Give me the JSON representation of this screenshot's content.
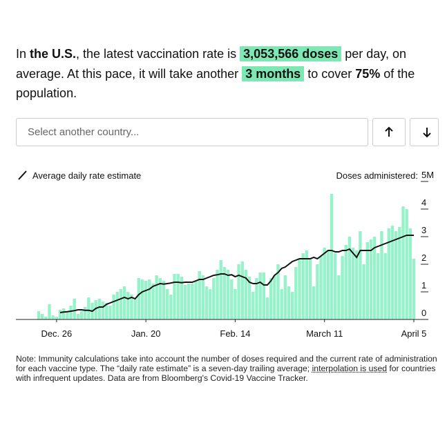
{
  "intro": [
    {
      "text": "In "
    },
    {
      "text": "the U.S.",
      "style": "bold"
    },
    {
      "text": ", the latest vaccination rate is "
    },
    {
      "text": "3,053,566 doses",
      "style": "highlight"
    },
    {
      "text": " per day, on average. At this pace, it will take another "
    },
    {
      "text": "3 months",
      "style": "highlight"
    },
    {
      "text": " to cover "
    },
    {
      "text": "75%",
      "style": "bold"
    },
    {
      "text": " of the population."
    }
  ],
  "search": {
    "placeholder": "Select another country..."
  },
  "chart_data": {
    "type": "bar",
    "ylabel": "Doses administered:",
    "ylim": [
      0,
      5
    ],
    "yticks": [
      0,
      1,
      2,
      3,
      4,
      {
        "value": 5,
        "label": "5M"
      }
    ],
    "categories": [
      null,
      null,
      null,
      null,
      null,
      "Dec. 26",
      null,
      null,
      null,
      null,
      null,
      null,
      null,
      null,
      null,
      null,
      null,
      null,
      null,
      null,
      null,
      null,
      null,
      null,
      null,
      null,
      null,
      null,
      null,
      null,
      "Jan. 20",
      null,
      null,
      null,
      null,
      null,
      null,
      null,
      null,
      null,
      null,
      null,
      null,
      null,
      null,
      null,
      null,
      null,
      null,
      null,
      null,
      null,
      null,
      null,
      null,
      "Feb. 14",
      null,
      null,
      null,
      null,
      null,
      null,
      null,
      null,
      null,
      null,
      null,
      null,
      null,
      null,
      null,
      null,
      null,
      null,
      null,
      null,
      null,
      null,
      null,
      null,
      "March 11",
      null,
      null,
      null,
      null,
      null,
      null,
      null,
      null,
      null,
      null,
      null,
      null,
      null,
      null,
      null,
      null,
      null,
      null,
      null,
      null,
      null,
      null,
      null,
      null,
      "April 5"
    ],
    "series": [
      {
        "type": "bar",
        "color": "#95f2c9",
        "values": [
          0.3,
          0.2,
          0.1,
          0.55,
          0.15,
          0.1,
          0.35,
          0.4,
          0.3,
          0.5,
          0.75,
          0.2,
          0.3,
          0.45,
          0.8,
          0.6,
          0.7,
          0.75,
          0.65,
          0.6,
          0.5,
          0.9,
          1.0,
          1.1,
          1.2,
          1.0,
          0.9,
          0.75,
          1.5,
          1.45,
          1.4,
          1.45,
          1.3,
          1.6,
          1.5,
          1.4,
          1.1,
          0.9,
          1.65,
          1.65,
          1.55,
          1.25,
          1.3,
          1.3,
          1.4,
          1.75,
          1.6,
          1.2,
          1.1,
          1.5,
          1.8,
          2.15,
          1.9,
          1.8,
          1.45,
          1.1,
          2.0,
          2.1,
          1.8,
          1.55,
          1.0,
          1.5,
          1.7,
          1.7,
          0.8,
          1.5,
          1.6,
          2.0,
          1.1,
          1.6,
          1.2,
          1.0,
          1.9,
          2.2,
          2.4,
          2.5,
          2.2,
          1.2,
          2.0,
          2.3,
          2.6,
          2.5,
          4.55,
          2.4,
          1.6,
          2.3,
          2.7,
          3.0,
          2.6,
          2.5,
          3.2,
          2.0,
          2.8,
          2.9,
          3.0,
          2.4,
          3.2,
          2.4,
          3.3,
          3.4,
          3.2,
          3.35,
          4.1,
          4.0,
          3.3,
          2.2
        ]
      },
      {
        "type": "line",
        "name": "Average daily rate estimate",
        "color": "#111111",
        "values": [
          null,
          null,
          null,
          null,
          null,
          null,
          0.25,
          0.27,
          0.28,
          0.3,
          0.32,
          0.35,
          0.35,
          0.33,
          0.33,
          0.3,
          0.4,
          0.45,
          0.45,
          0.55,
          0.6,
          0.65,
          0.7,
          0.75,
          0.8,
          0.75,
          0.8,
          0.75,
          0.9,
          1.0,
          1.05,
          1.1,
          1.2,
          1.25,
          1.3,
          1.28,
          1.3,
          1.32,
          1.35,
          1.35,
          1.33,
          1.35,
          1.35,
          1.35,
          1.4,
          1.45,
          1.45,
          1.5,
          1.55,
          1.6,
          1.62,
          1.65,
          1.65,
          1.6,
          1.62,
          1.55,
          1.6,
          1.55,
          1.5,
          1.35,
          1.3,
          1.3,
          1.35,
          1.25,
          1.25,
          1.4,
          1.6,
          1.7,
          1.85,
          1.9,
          2.0,
          2.1,
          2.15,
          2.2,
          2.2,
          2.2,
          2.2,
          2.25,
          2.2,
          2.3,
          2.4,
          2.5,
          2.5,
          2.45,
          2.45,
          2.5,
          2.5,
          2.55,
          2.4,
          2.25,
          2.5,
          2.5,
          2.5,
          2.5,
          2.6,
          2.65,
          2.7,
          2.75,
          2.8,
          2.85,
          2.9,
          2.95,
          3.0,
          3.05,
          3.05,
          3.05
        ]
      }
    ]
  },
  "note": [
    {
      "text": "Note: Immunity calculations take into account the number of doses required and the current rate of administration for each vaccine type. The “daily rate estimate” is a seven-day trailing average; "
    },
    {
      "text": "interpolation is used",
      "style": "underline"
    },
    {
      "text": " for countries with infrequent updates. Data are from Bloomberg's Covid-19 Vaccine Tracker."
    }
  ]
}
